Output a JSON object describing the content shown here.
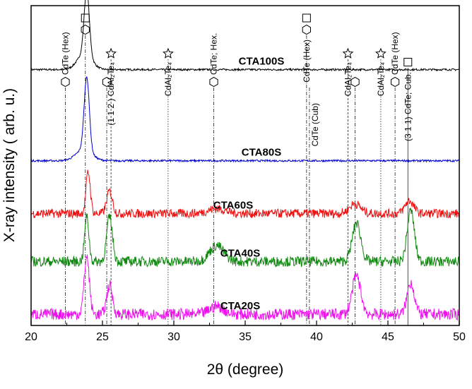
{
  "chart_data": {
    "type": "line",
    "title": "",
    "xlabel": "2θ (degree)",
    "ylabel": "X-ray intensity ( arb. u.)",
    "xlim": [
      20,
      50
    ],
    "ylim": [
      0,
      100
    ],
    "x_ticks": [
      "20",
      "25",
      "30",
      "35",
      "40",
      "45",
      "50"
    ],
    "grid": false,
    "series": [
      {
        "name": "CTA100S",
        "color": "#000000",
        "baseline": 80.0,
        "peaks": [
          {
            "x": 23.9,
            "h": 20.0,
            "w": 0.18
          },
          {
            "x": 23.75,
            "h": 5.0,
            "w": 0.5
          }
        ],
        "noise": 0.3
      },
      {
        "name": "CTA80S",
        "color": "#0000cc",
        "baseline": 51.5,
        "peaks": [
          {
            "x": 23.9,
            "h": 23.0,
            "w": 0.18
          },
          {
            "x": 23.7,
            "h": 3.5,
            "w": 0.55
          }
        ],
        "noise": 0.3
      },
      {
        "name": "CTA60S",
        "color": "#ee1111",
        "baseline": 35.0,
        "peaks": [
          {
            "x": 24.0,
            "h": 13.0,
            "w": 0.15
          },
          {
            "x": 25.5,
            "h": 7.0,
            "w": 0.2
          },
          {
            "x": 33.0,
            "h": 1.5,
            "w": 0.6
          },
          {
            "x": 42.7,
            "h": 3.0,
            "w": 0.4
          },
          {
            "x": 46.5,
            "h": 4.0,
            "w": 0.3
          }
        ],
        "noise": 1.4
      },
      {
        "name": "CTA40S",
        "color": "#118811",
        "baseline": 20.0,
        "peaks": [
          {
            "x": 23.9,
            "h": 14.0,
            "w": 0.15
          },
          {
            "x": 25.5,
            "h": 14.0,
            "w": 0.2
          },
          {
            "x": 33.0,
            "h": 5.0,
            "w": 0.5
          },
          {
            "x": 42.8,
            "h": 12.0,
            "w": 0.3
          },
          {
            "x": 46.6,
            "h": 16.0,
            "w": 0.25
          }
        ],
        "noise": 1.6
      },
      {
        "name": "CTA20S",
        "color": "#ee11ee",
        "baseline": 3.5,
        "peaks": [
          {
            "x": 23.9,
            "h": 18.0,
            "w": 0.18
          },
          {
            "x": 25.5,
            "h": 9.0,
            "w": 0.2
          },
          {
            "x": 33.0,
            "h": 2.5,
            "w": 0.5
          },
          {
            "x": 42.8,
            "h": 12.0,
            "w": 0.3
          },
          {
            "x": 46.6,
            "h": 10.0,
            "w": 0.25
          }
        ],
        "noise": 1.8
      }
    ],
    "reference_lines": [
      {
        "x": 22.4,
        "style": "dashdot",
        "symbol": "hexagon",
        "label": "CdTe (Hex)"
      },
      {
        "x": 23.8,
        "style": "dashdot",
        "symbol": "hexagon-square",
        "label": ""
      },
      {
        "x": 25.3,
        "style": "dashdot",
        "symbol": "hexagon",
        "label": ""
      },
      {
        "x": 25.6,
        "style": "dashed",
        "symbol": "star",
        "label": "(1 1 2 ) CdAl₂Te₄"
      },
      {
        "x": 29.6,
        "style": "dotted",
        "symbol": "star",
        "label": "CdAl₂Te₄"
      },
      {
        "x": 32.8,
        "style": "dashdot",
        "symbol": "hexagon",
        "label": "CdTe; Hex."
      },
      {
        "x": 39.3,
        "style": "dashdot",
        "symbol": "hexagon-square",
        "label": "CdTe (Hex)"
      },
      {
        "x": 39.5,
        "style": "dashdot",
        "symbol": "none",
        "label": "CdTe (Cub)"
      },
      {
        "x": 42.2,
        "style": "dashed",
        "symbol": "star",
        "label": "CdAl₂Te₄"
      },
      {
        "x": 42.7,
        "style": "dashdot",
        "symbol": "hexagon",
        "label": ""
      },
      {
        "x": 44.5,
        "style": "dotted",
        "symbol": "star",
        "label": "CdAl₂Te₄"
      },
      {
        "x": 45.5,
        "style": "dashdot",
        "symbol": "hexagon",
        "label": "CdTe (Hex)"
      },
      {
        "x": 46.4,
        "style": "solid",
        "symbol": "square",
        "label": "(3 1 1) CdTe; Cub."
      }
    ]
  }
}
